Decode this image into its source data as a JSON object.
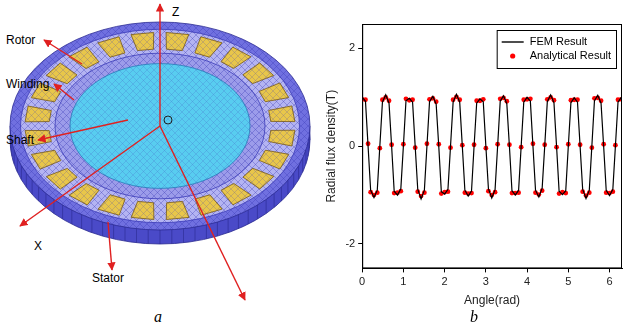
{
  "panel_labels": [
    "a",
    "b"
  ],
  "diagram": {
    "labels": [
      "Rotor",
      "Winding",
      "Shaft",
      "Stator"
    ],
    "axes": [
      "X",
      "Z"
    ]
  },
  "chart_data": {
    "type": "line",
    "x_label": "Angle(rad)",
    "y_label": "Radial flux density(T)",
    "xlim": [
      0,
      6.3
    ],
    "xticks": [
      0,
      1,
      2,
      3,
      4,
      5,
      6
    ],
    "ylim": [
      -2.5,
      2.5
    ],
    "yticks": [
      -2,
      0,
      2
    ],
    "grid": false,
    "legend": "upper right",
    "x": [
      0,
      0.08,
      0.143,
      0.205,
      0.286,
      0.366,
      0.428,
      0.491,
      0.571,
      0.651,
      0.714,
      0.776,
      0.857,
      0.937,
      0.999,
      1.062,
      1.142,
      1.222,
      1.285,
      1.347,
      1.428,
      1.508,
      1.57,
      1.633,
      1.714,
      1.794,
      1.857,
      1.919,
      2.0,
      2.08,
      2.142,
      2.205,
      2.285,
      2.365,
      2.428,
      2.49,
      2.571,
      2.651,
      2.713,
      2.776,
      2.856,
      2.936,
      2.999,
      3.061,
      3.142,
      3.222,
      3.284,
      3.347,
      3.427,
      3.507,
      3.57,
      3.632,
      3.713,
      3.793,
      3.855,
      3.918,
      3.998,
      4.078,
      4.141,
      4.203,
      4.284,
      4.364,
      4.426,
      4.489,
      4.57,
      4.65,
      4.713,
      4.775,
      4.856,
      4.936,
      4.998,
      5.061,
      5.141,
      5.221,
      5.284,
      5.346,
      5.427,
      5.507,
      5.569,
      5.632,
      5.712,
      5.792,
      5.855,
      5.917,
      5.998,
      6.078,
      6.14,
      6.203,
      6.283
    ],
    "series": [
      {
        "name": "FEM Result",
        "color": "#000000",
        "type": "line",
        "line_style": "solid",
        "values": [
          1.0,
          0.92,
          0.0,
          -0.9,
          -1.05,
          -0.9,
          0.0,
          0.9,
          1.05,
          0.88,
          0.0,
          -0.92,
          -1.0,
          -0.87,
          0.0,
          0.93,
          0.98,
          0.9,
          0.0,
          -0.88,
          -1.08,
          -0.9,
          0.0,
          0.91,
          1.02,
          0.86,
          0.0,
          -0.93,
          -0.98,
          -0.88,
          0.0,
          0.9,
          1.06,
          0.9,
          0.0,
          -0.9,
          -1.02,
          -0.92,
          0.0,
          0.88,
          0.97,
          0.91,
          0.0,
          -0.87,
          -1.06,
          -0.89,
          0.0,
          0.92,
          1.03,
          0.87,
          0.0,
          -0.91,
          -1.0,
          -0.9,
          0.0,
          0.9,
          1.0,
          0.92,
          0.0,
          -0.9,
          -1.04,
          -0.86,
          0.0,
          0.91,
          1.05,
          0.89,
          0.0,
          -0.92,
          -0.99,
          -0.91,
          0.0,
          0.89,
          0.99,
          0.9,
          0.0,
          -0.88,
          -1.07,
          -0.9,
          0.0,
          0.93,
          1.04,
          0.88,
          0.0,
          -0.9,
          -1.01,
          -0.88,
          0.0,
          0.9,
          1.0
        ]
      },
      {
        "name": "Analytical Result",
        "color": "#ff0000",
        "type": "scatter",
        "marker": "circle",
        "values": [
          0.96,
          0.95,
          0.05,
          -0.94,
          -1.0,
          -0.95,
          -0.04,
          0.95,
          1.0,
          0.93,
          0.03,
          -0.96,
          -0.95,
          -0.92,
          0.04,
          0.97,
          0.94,
          0.95,
          -0.03,
          -0.93,
          -1.02,
          -0.95,
          0.05,
          0.96,
          0.98,
          0.91,
          0.04,
          -0.97,
          -0.94,
          -0.93,
          -0.03,
          0.95,
          1.01,
          0.95,
          0.02,
          -0.95,
          -0.97,
          -0.96,
          0.03,
          0.93,
          0.93,
          0.96,
          -0.04,
          -0.92,
          -1.0,
          -0.94,
          0.04,
          0.97,
          0.99,
          0.92,
          0.03,
          -0.96,
          -0.96,
          -0.95,
          -0.02,
          0.95,
          0.96,
          0.97,
          0.05,
          -0.95,
          -0.99,
          -0.91,
          0.03,
          0.96,
          1.0,
          0.94,
          -0.02,
          -0.97,
          -0.94,
          -0.96,
          0.04,
          0.94,
          0.95,
          0.95,
          0.03,
          -0.93,
          -1.01,
          -0.95,
          -0.03,
          0.98,
          0.99,
          0.93,
          0.04,
          -0.95,
          -0.96,
          -0.93,
          0.02,
          0.95,
          0.96
        ]
      }
    ]
  }
}
